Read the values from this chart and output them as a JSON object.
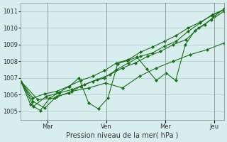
{
  "title": "",
  "xlabel": "Pression niveau de la mer( hPa )",
  "ylabel": "",
  "bg_color": "#d8eeee",
  "grid_color": "#aacccc",
  "line_color": "#1a6e1a",
  "marker_color": "#1a6e1a",
  "ylim": [
    1004.5,
    1011.5
  ],
  "yticks": [
    1005,
    1006,
    1007,
    1008,
    1009,
    1010,
    1011
  ],
  "day_positions": [
    0.13,
    0.42,
    0.71,
    0.95
  ],
  "day_labels": [
    "Mar",
    "Ven",
    "Mer",
    "Jeu"
  ],
  "series": [
    [
      1006.8,
      1005.6,
      1005.2,
      1005.9,
      1006.1,
      1006.5,
      1006.8,
      1007.0,
      1007.5,
      1007.9,
      1008.3,
      1008.5,
      1008.9,
      1009.2,
      1009.8,
      1010.3,
      1010.8,
      1011.1
    ],
    [
      1006.8,
      1005.3,
      1005.9,
      1006.1,
      1006.3,
      1006.6,
      1006.9,
      1007.2,
      1007.6,
      1007.9,
      1008.3,
      1008.6,
      1009.0,
      1009.3,
      1010.0,
      1010.5,
      1011.0
    ],
    [
      1006.8,
      1005.7,
      1005.8,
      1006.2,
      1006.4,
      1006.7,
      1006.4,
      1007.1,
      1007.6,
      1008.0,
      1008.4,
      1008.7,
      1009.1
    ],
    [
      1006.8,
      1005.8,
      1006.05,
      1006.2,
      1006.5,
      1006.85,
      1007.1,
      1007.45,
      1007.9,
      1008.1,
      1008.55,
      1008.85,
      1009.2,
      1009.55,
      1010.0,
      1010.35,
      1010.75,
      1011.1
    ],
    [
      1006.8,
      1005.4,
      1005.05,
      1005.8,
      1006.15,
      1006.5,
      1007.0,
      1005.5,
      1005.15,
      1005.8,
      1007.85,
      1008.05,
      1008.25,
      1007.55,
      1006.85,
      1007.3,
      1006.85,
      1009.0,
      1009.85,
      1010.2,
      1010.7,
      1011.15
    ]
  ],
  "x_starts": [
    0,
    0,
    0,
    0,
    0
  ],
  "total_points": 22,
  "x_range": [
    0,
    21
  ]
}
